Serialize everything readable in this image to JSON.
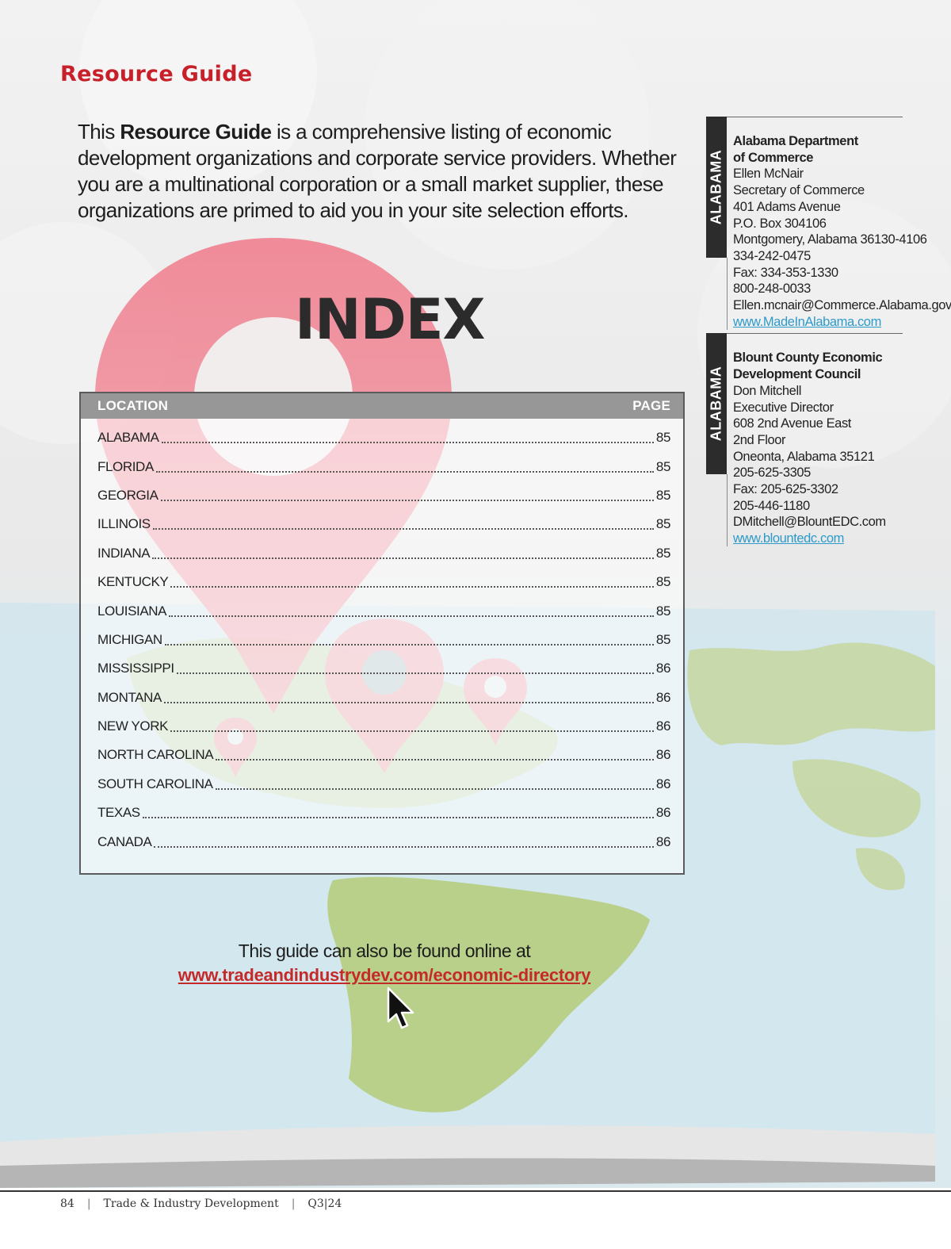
{
  "header": {
    "section_title": "Resource Guide"
  },
  "intro": {
    "before_bold": "This ",
    "bold": "Resource Guide",
    "after_bold": " is a comprehensive listing of economic development organizations and corporate service providers. Whether you are a multinational corporation or a small market supplier, these organizations are primed to aid you in your site selection efforts."
  },
  "index": {
    "heading": "INDEX",
    "col_location": "LOCATION",
    "col_page": "PAGE",
    "rows": [
      {
        "location": "ALABAMA",
        "page": "85"
      },
      {
        "location": "FLORIDA",
        "page": "85"
      },
      {
        "location": "GEORGIA",
        "page": "85"
      },
      {
        "location": "ILLINOIS",
        "page": "85"
      },
      {
        "location": "INDIANA",
        "page": "85"
      },
      {
        "location": "KENTUCKY",
        "page": "85"
      },
      {
        "location": "LOUISIANA",
        "page": "85"
      },
      {
        "location": "MICHIGAN",
        "page": "85"
      },
      {
        "location": "MISSISSIPPI",
        "page": "86"
      },
      {
        "location": "MONTANA",
        "page": "86"
      },
      {
        "location": "NEW YORK",
        "page": "86"
      },
      {
        "location": "NORTH CAROLINA",
        "page": "86"
      },
      {
        "location": "SOUTH CAROLINA",
        "page": "86"
      },
      {
        "location": "TEXAS",
        "page": "86"
      },
      {
        "location": "CANADA",
        "page": "86"
      }
    ]
  },
  "sidebar": {
    "entries": [
      {
        "state": "ALABAMA",
        "org_lines": [
          "Alabama Department",
          "of Commerce"
        ],
        "lines": [
          "Ellen McNair",
          "Secretary of Commerce",
          "401 Adams Avenue",
          "P.O. Box 304106",
          "Montgomery, Alabama 36130-4106",
          "334-242-0475",
          "Fax: 334-353-1330",
          "800-248-0033",
          "Ellen.mcnair@Commerce.Alabama.gov"
        ],
        "website": "www.MadeInAlabama.com"
      },
      {
        "state": "ALABAMA",
        "org_lines": [
          "Blount County Economic",
          "Development Council"
        ],
        "lines": [
          "Don Mitchell",
          "Executive Director",
          "608 2nd Avenue East",
          "2nd Floor",
          "Oneonta, Alabama 35121",
          "205-625-3305",
          "Fax: 205-625-3302",
          "205-446-1180",
          "DMitchell@BlountEDC.com"
        ],
        "website": "www.blountedc.com"
      }
    ]
  },
  "online_note": {
    "text": "This guide can also be found online at",
    "url": "www.tradeandindustrydev.com/economic-directory"
  },
  "footer": {
    "page_number": "84",
    "publication": "Trade & Industry Development",
    "issue": "Q3|24"
  },
  "colors": {
    "accent_red": "#c8202a",
    "link_blue": "#2d9ac9",
    "header_gray": "#979797",
    "tab_dark": "#2c2c2c"
  }
}
